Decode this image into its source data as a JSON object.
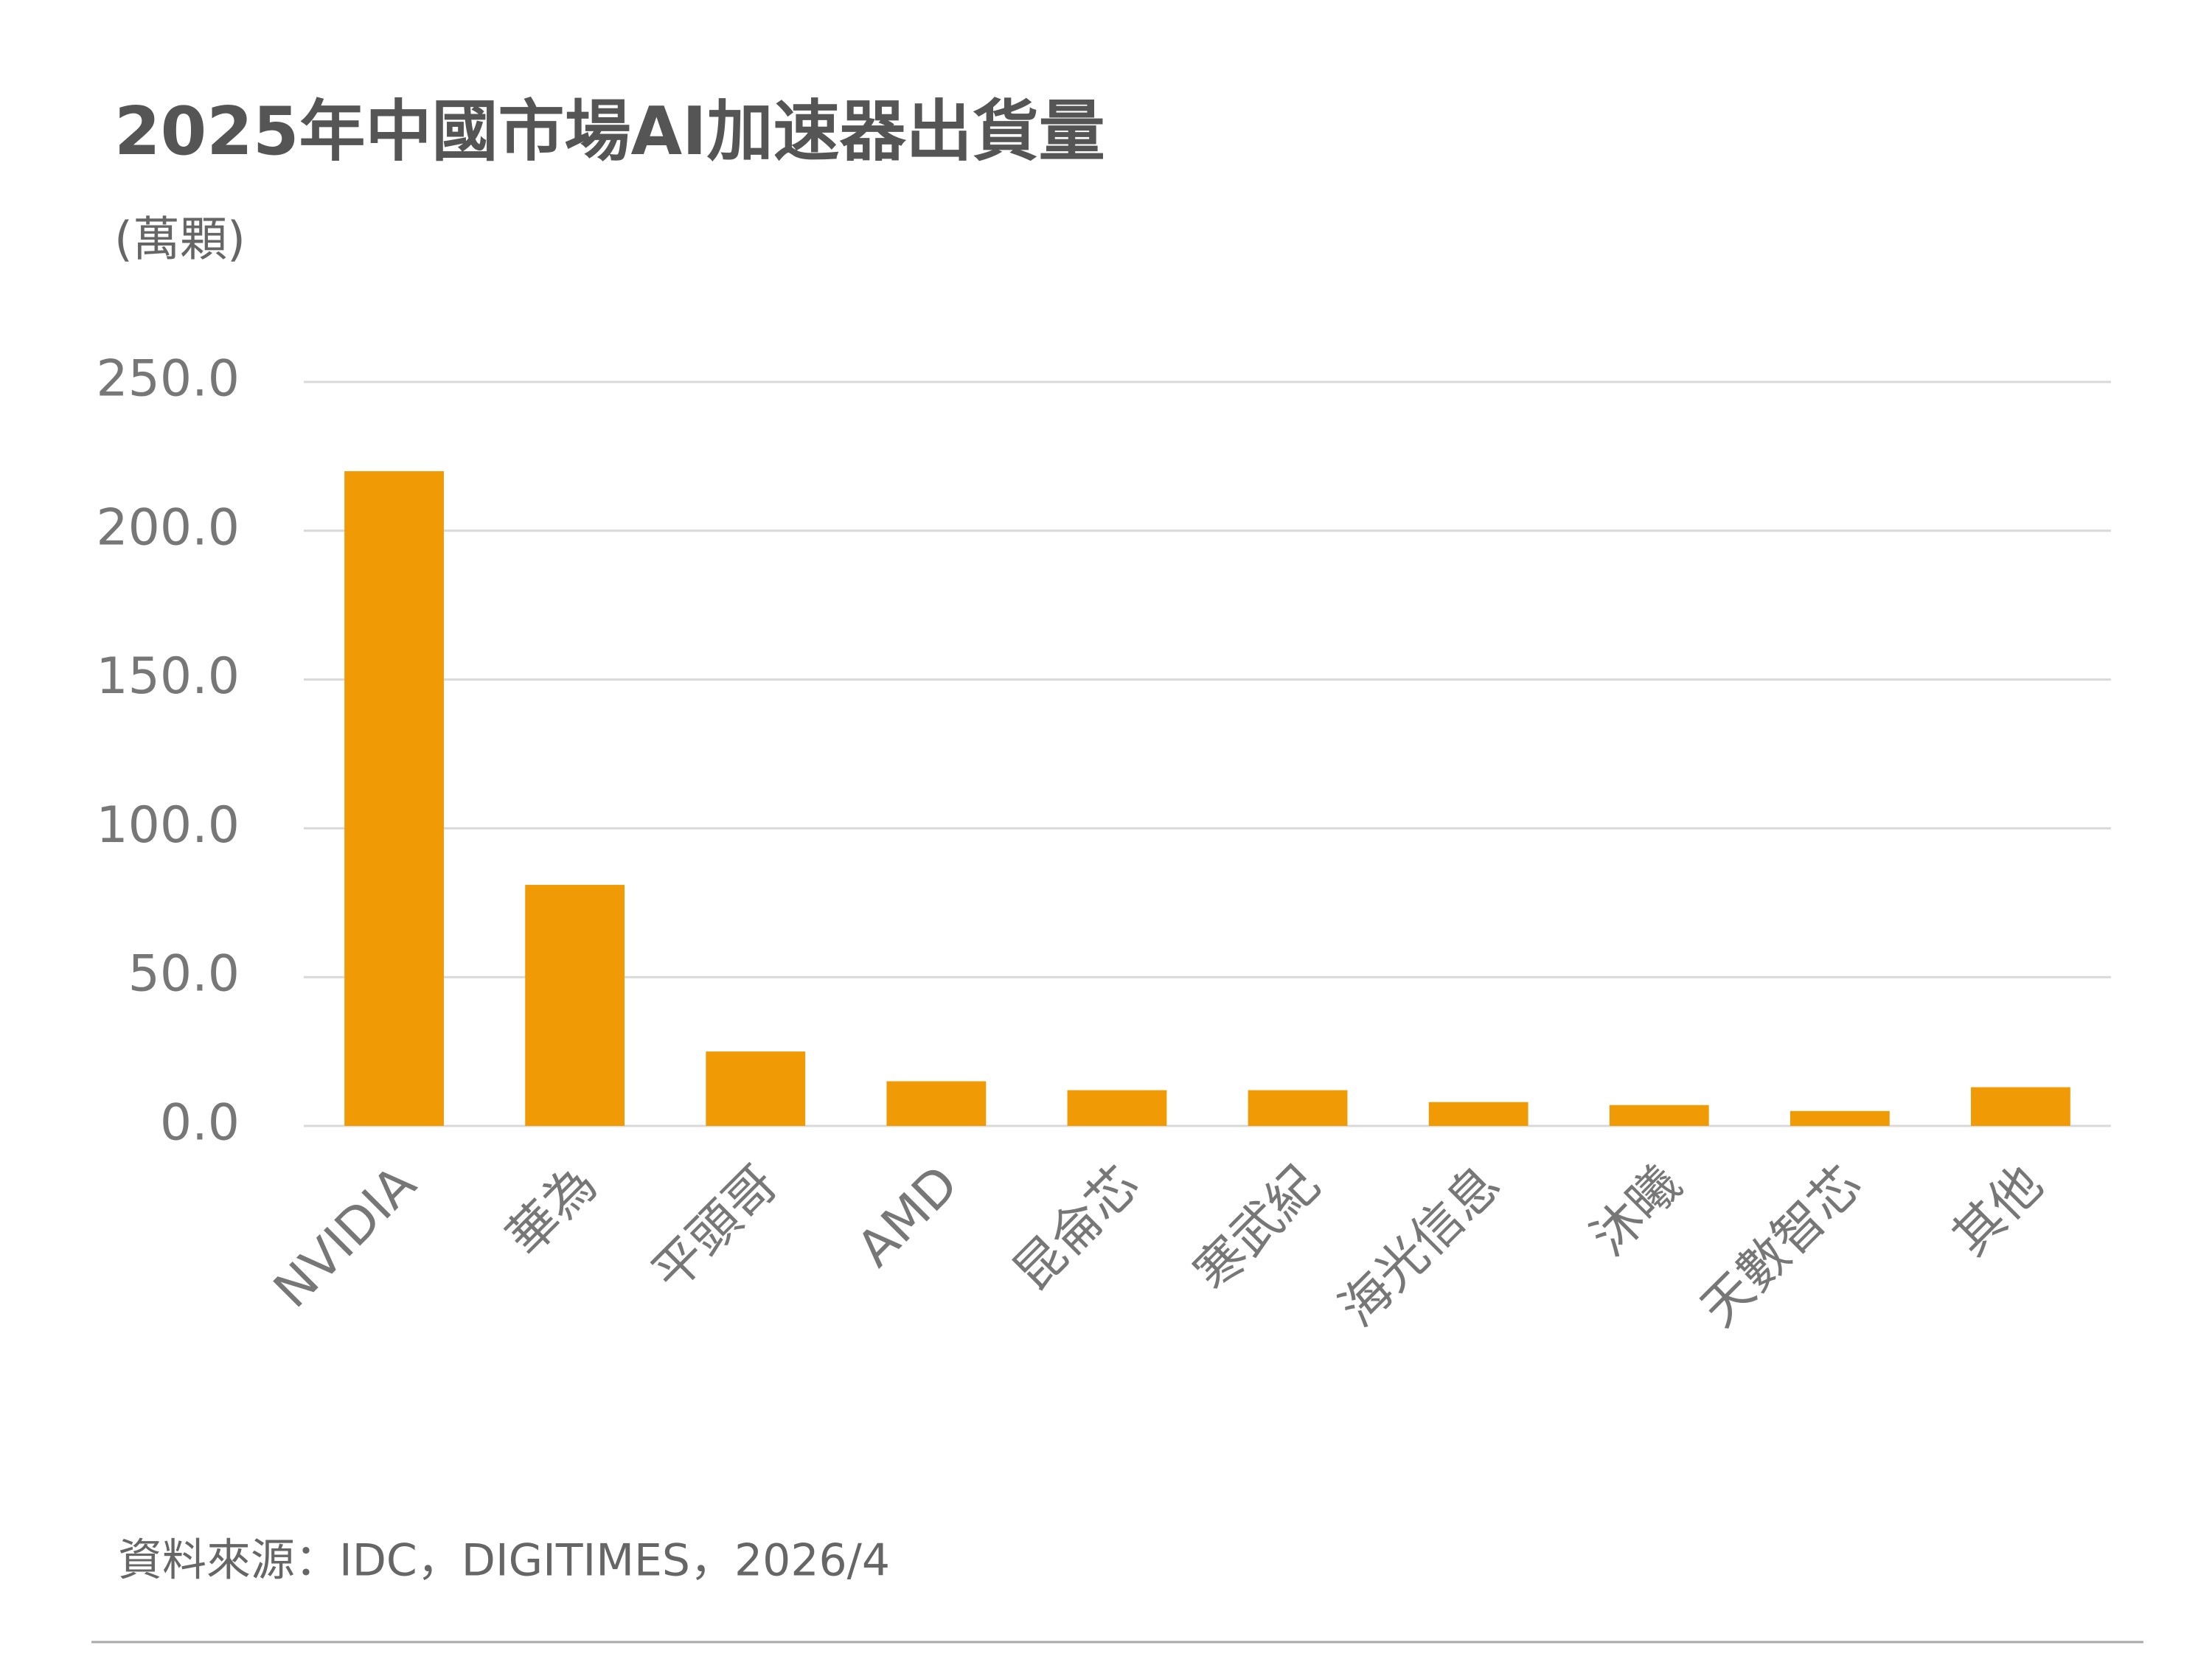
{
  "chart_data": {
    "type": "bar",
    "title": "2025年中國市場AI加速器出貨量",
    "y_label": "(萬顆)",
    "categories": [
      "NVIDIA",
      "華為",
      "平頭哥",
      "AMD",
      "昆侖芯",
      "寒武紀",
      "海光信息",
      "沐曦",
      "天數智芯",
      "其他"
    ],
    "values": [
      220,
      81,
      25,
      15,
      12,
      12,
      8,
      7,
      5,
      13
    ],
    "color": "#f09a05",
    "ylim": [
      0,
      250
    ],
    "yticks": [
      {
        "value": 0,
        "label": "0.0"
      },
      {
        "value": 50,
        "label": "50.0"
      },
      {
        "value": 100,
        "label": "100.0"
      },
      {
        "value": 150,
        "label": "150.0"
      },
      {
        "value": 200,
        "label": "200.0"
      },
      {
        "value": 250,
        "label": "250.0"
      }
    ],
    "grid": true,
    "source": "資料來源：IDC，DIGITIMES，2026/4"
  }
}
